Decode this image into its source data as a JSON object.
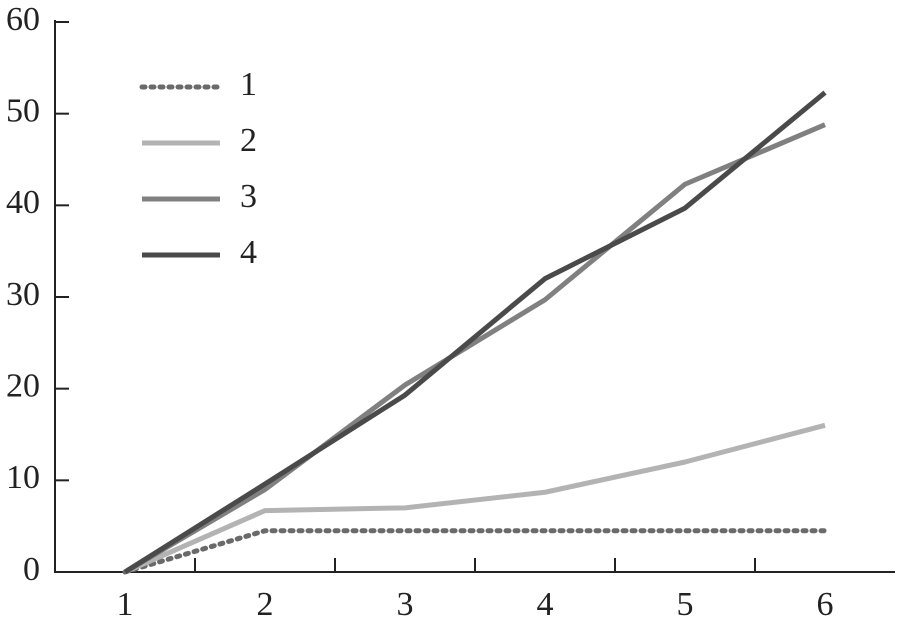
{
  "chart_data": {
    "type": "line",
    "categories": [
      "1",
      "2",
      "3",
      "4",
      "5",
      "6"
    ],
    "series": [
      {
        "name": "1",
        "color": "#6a6a6a",
        "style": "dotted",
        "values": [
          0,
          4.5,
          4.5,
          4.5,
          4.5,
          4.5
        ]
      },
      {
        "name": "2",
        "color": "#b3b3b3",
        "style": "solid",
        "values": [
          0,
          6.7,
          7.0,
          8.7,
          12,
          16
        ]
      },
      {
        "name": "3",
        "color": "#808080",
        "style": "solid",
        "values": [
          0,
          9,
          20.4,
          29.7,
          42.3,
          48.8
        ]
      },
      {
        "name": "4",
        "color": "#4a4a4a",
        "style": "solid",
        "values": [
          0,
          9.6,
          19.3,
          32,
          39.7,
          52.3
        ]
      }
    ],
    "ylim": [
      0,
      60
    ],
    "yticks": [
      0,
      10,
      20,
      30,
      40,
      50,
      60
    ],
    "legend": "top-left",
    "grid": false
  }
}
